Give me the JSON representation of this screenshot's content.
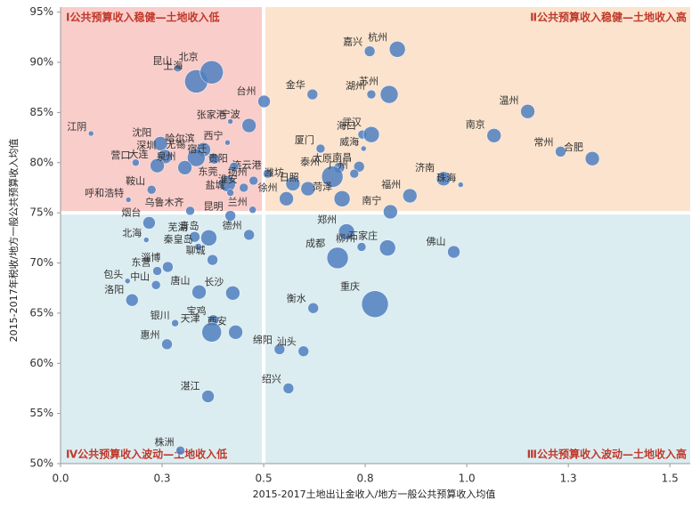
{
  "chart_data": {
    "type": "bubble",
    "x_label": "2015-2017土地出让金收入/地方一般公共预算收入均值",
    "y_label": "2015-2017年税收/地方一般公共预算收入均值",
    "xlim": [
      0,
      1.55
    ],
    "ylim": [
      50,
      95.5
    ],
    "xticks": [
      {
        "value": 0,
        "label": "0.0"
      },
      {
        "value": 0.25,
        "label": "0.3"
      },
      0.5,
      {
        "value": 0.75,
        "label": "0.8"
      },
      {
        "value": 1,
        "label": "1.0"
      },
      {
        "value": 1.25,
        "label": "1.3"
      },
      1.5
    ],
    "yticks": [
      {
        "value": 50,
        "label": "50%"
      },
      {
        "value": 55,
        "label": "55%"
      },
      {
        "value": 60,
        "label": "60%"
      },
      {
        "value": 65,
        "label": "65%"
      },
      {
        "value": 70,
        "label": "70%"
      },
      {
        "value": 75,
        "label": "75%"
      },
      {
        "value": 80,
        "label": "80%"
      },
      {
        "value": 85,
        "label": "85%"
      },
      {
        "value": 90,
        "label": "90%"
      },
      {
        "value": 95,
        "label": "95%"
      }
    ],
    "color": "#4f7fbf",
    "quadrant_split": {
      "x": 0.5,
      "y": 75
    },
    "quadrants": [
      {
        "label": "Ⅰ公共预算收入稳健—土地收入低",
        "color": "#f9cdca",
        "corner": "top-left"
      },
      {
        "label": "Ⅱ公共预算收入稳健—土地收入高",
        "color": "#fbe3cd",
        "corner": "top-right"
      },
      {
        "label": "Ⅲ公共预算收入波动—土地收入高",
        "color": "#dcedf1",
        "corner": "bottom-right"
      },
      {
        "label": "Ⅳ公共预算收入波动—土地收入低",
        "color": "#dcedf1",
        "corner": "bottom-left"
      }
    ],
    "points": [
      {
        "label": "嘉兴",
        "x": 0.761,
        "y": 91.1,
        "size": 6
      },
      {
        "label": "杭州",
        "x": 0.829,
        "y": 91.3,
        "size": 9
      },
      {
        "label": "昆山",
        "x": 0.288,
        "y": 89.4,
        "size": 4
      },
      {
        "label": "上海",
        "x": 0.334,
        "y": 88.1,
        "size": 13
      },
      {
        "label": "北京",
        "x": 0.372,
        "y": 89.0,
        "size": 13
      },
      {
        "label": "湖州",
        "x": 0.765,
        "y": 86.8,
        "size": 5
      },
      {
        "label": "苏州",
        "x": 0.809,
        "y": 86.8,
        "size": 10
      },
      {
        "label": "台州",
        "x": 0.501,
        "y": 86.1,
        "size": 7
      },
      {
        "label": "金华",
        "x": 0.62,
        "y": 86.8,
        "size": 6
      },
      {
        "label": "温州",
        "x": 1.15,
        "y": 85.1,
        "size": 8
      },
      {
        "label": "南京",
        "x": 1.067,
        "y": 82.7,
        "size": 8
      },
      {
        "label": "江阴",
        "x": 0.075,
        "y": 82.9,
        "size": 3
      },
      {
        "label": "张家港",
        "x": 0.418,
        "y": 84.1,
        "size": 3
      },
      {
        "label": "宁波",
        "x": 0.464,
        "y": 83.7,
        "size": 8
      },
      {
        "label": "常州",
        "x": 1.231,
        "y": 81.1,
        "size": 6
      },
      {
        "label": "合肥",
        "x": 1.309,
        "y": 80.4,
        "size": 8
      },
      {
        "label": "沈阳",
        "x": 0.246,
        "y": 81.9,
        "size": 8
      },
      {
        "label": "哈尔滨",
        "x": 0.352,
        "y": 81.3,
        "size": 8
      },
      {
        "label": "西宁",
        "x": 0.411,
        "y": 82.0,
        "size": 3
      },
      {
        "label": "厦门",
        "x": 0.64,
        "y": 81.4,
        "size": 5
      },
      {
        "label": "海口",
        "x": 0.743,
        "y": 82.8,
        "size": 5
      },
      {
        "label": "武汉",
        "x": 0.765,
        "y": 82.8,
        "size": 9
      },
      {
        "label": "威海",
        "x": 0.746,
        "y": 81.4,
        "size": 3
      },
      {
        "label": "营口",
        "x": 0.185,
        "y": 80.0,
        "size": 4
      },
      {
        "label": "无锡",
        "x": 0.334,
        "y": 80.5,
        "size": 10
      },
      {
        "label": "深圳",
        "x": 0.257,
        "y": 80.6,
        "size": 8
      },
      {
        "label": "宿迁",
        "x": 0.378,
        "y": 80.4,
        "size": 6
      },
      {
        "label": "太原",
        "x": 0.686,
        "y": 79.5,
        "size": 6
      },
      {
        "label": "泰州",
        "x": 0.669,
        "y": 78.6,
        "size": 12
      },
      {
        "label": "连云港",
        "x": 0.51,
        "y": 78.9,
        "size": 5
      },
      {
        "label": "大连",
        "x": 0.238,
        "y": 79.7,
        "size": 8
      },
      {
        "label": "泉州",
        "x": 0.306,
        "y": 79.5,
        "size": 8
      },
      {
        "label": "贵阳",
        "x": 0.427,
        "y": 79.6,
        "size": 5
      },
      {
        "label": "南昌",
        "x": 0.735,
        "y": 79.6,
        "size": 6
      },
      {
        "label": "福州",
        "x": 0.86,
        "y": 76.7,
        "size": 8
      },
      {
        "label": "济南",
        "x": 0.943,
        "y": 78.4,
        "size": 8
      },
      {
        "label": "珠海",
        "x": 0.985,
        "y": 77.8,
        "size": 3
      },
      {
        "label": "鞍山",
        "x": 0.224,
        "y": 77.3,
        "size": 5
      },
      {
        "label": "东莞",
        "x": 0.411,
        "y": 77.9,
        "size": 9
      },
      {
        "label": "淮安",
        "x": 0.451,
        "y": 77.5,
        "size": 5
      },
      {
        "label": "扬州",
        "x": 0.475,
        "y": 78.2,
        "size": 5
      },
      {
        "label": "潍坊",
        "x": 0.572,
        "y": 77.9,
        "size": 8
      },
      {
        "label": "日照",
        "x": 0.609,
        "y": 77.4,
        "size": 8
      },
      {
        "label": "广州",
        "x": 0.723,
        "y": 78.9,
        "size": 5
      },
      {
        "label": "菏泽",
        "x": 0.693,
        "y": 76.4,
        "size": 9
      },
      {
        "label": "徐州",
        "x": 0.556,
        "y": 76.4,
        "size": 8
      },
      {
        "label": "盐城",
        "x": 0.418,
        "y": 77.0,
        "size": 4
      },
      {
        "label": "呼和浩特",
        "x": 0.167,
        "y": 76.3,
        "size": 3
      },
      {
        "label": "乌鲁木齐",
        "x": 0.319,
        "y": 75.2,
        "size": 5
      },
      {
        "label": "昆明",
        "x": 0.418,
        "y": 74.7,
        "size": 6
      },
      {
        "label": "兰州",
        "x": 0.473,
        "y": 75.3,
        "size": 4
      },
      {
        "label": "南宁",
        "x": 0.812,
        "y": 75.1,
        "size": 8
      },
      {
        "label": "烟台",
        "x": 0.218,
        "y": 74.0,
        "size": 7
      },
      {
        "label": "德州",
        "x": 0.464,
        "y": 72.8,
        "size": 6
      },
      {
        "label": "郑州",
        "x": 0.704,
        "y": 73.1,
        "size": 9
      },
      {
        "label": "佛山",
        "x": 0.968,
        "y": 71.1,
        "size": 7
      },
      {
        "label": "北海",
        "x": 0.211,
        "y": 72.3,
        "size": 3
      },
      {
        "label": "芜湖",
        "x": 0.33,
        "y": 72.6,
        "size": 6
      },
      {
        "label": "青岛",
        "x": 0.365,
        "y": 72.5,
        "size": 9
      },
      {
        "label": "秦皇岛",
        "x": 0.339,
        "y": 71.6,
        "size": 4
      },
      {
        "label": "聊城",
        "x": 0.374,
        "y": 70.3,
        "size": 6
      },
      {
        "label": "成都",
        "x": 0.682,
        "y": 70.5,
        "size": 12
      },
      {
        "label": "柳州",
        "x": 0.741,
        "y": 71.6,
        "size": 5
      },
      {
        "label": "石家庄",
        "x": 0.805,
        "y": 71.5,
        "size": 9
      },
      {
        "label": "东营",
        "x": 0.238,
        "y": 69.2,
        "size": 5
      },
      {
        "label": "淄博",
        "x": 0.264,
        "y": 69.6,
        "size": 6
      },
      {
        "label": "包头",
        "x": 0.165,
        "y": 68.2,
        "size": 3
      },
      {
        "label": "中山",
        "x": 0.235,
        "y": 67.8,
        "size": 5
      },
      {
        "label": "唐山",
        "x": 0.341,
        "y": 67.1,
        "size": 8
      },
      {
        "label": "长沙",
        "x": 0.424,
        "y": 67.0,
        "size": 8
      },
      {
        "label": "洛阳",
        "x": 0.176,
        "y": 66.3,
        "size": 7
      },
      {
        "label": "衡水",
        "x": 0.622,
        "y": 65.5,
        "size": 6
      },
      {
        "label": "重庆",
        "x": 0.774,
        "y": 65.9,
        "size": 15
      },
      {
        "label": "银川",
        "x": 0.282,
        "y": 64.0,
        "size": 4
      },
      {
        "label": "宝鸡",
        "x": 0.376,
        "y": 64.3,
        "size": 6
      },
      {
        "label": "西安",
        "x": 0.431,
        "y": 63.1,
        "size": 8
      },
      {
        "label": "天津",
        "x": 0.372,
        "y": 63.1,
        "size": 11
      },
      {
        "label": "绵阳",
        "x": 0.539,
        "y": 61.4,
        "size": 6
      },
      {
        "label": "汕头",
        "x": 0.598,
        "y": 61.2,
        "size": 6
      },
      {
        "label": "惠州",
        "x": 0.262,
        "y": 61.9,
        "size": 6
      },
      {
        "label": "绍兴",
        "x": 0.561,
        "y": 57.5,
        "size": 6
      },
      {
        "label": "湛江",
        "x": 0.363,
        "y": 56.7,
        "size": 7
      },
      {
        "label": "株洲",
        "x": 0.295,
        "y": 51.3,
        "size": 5
      }
    ]
  }
}
